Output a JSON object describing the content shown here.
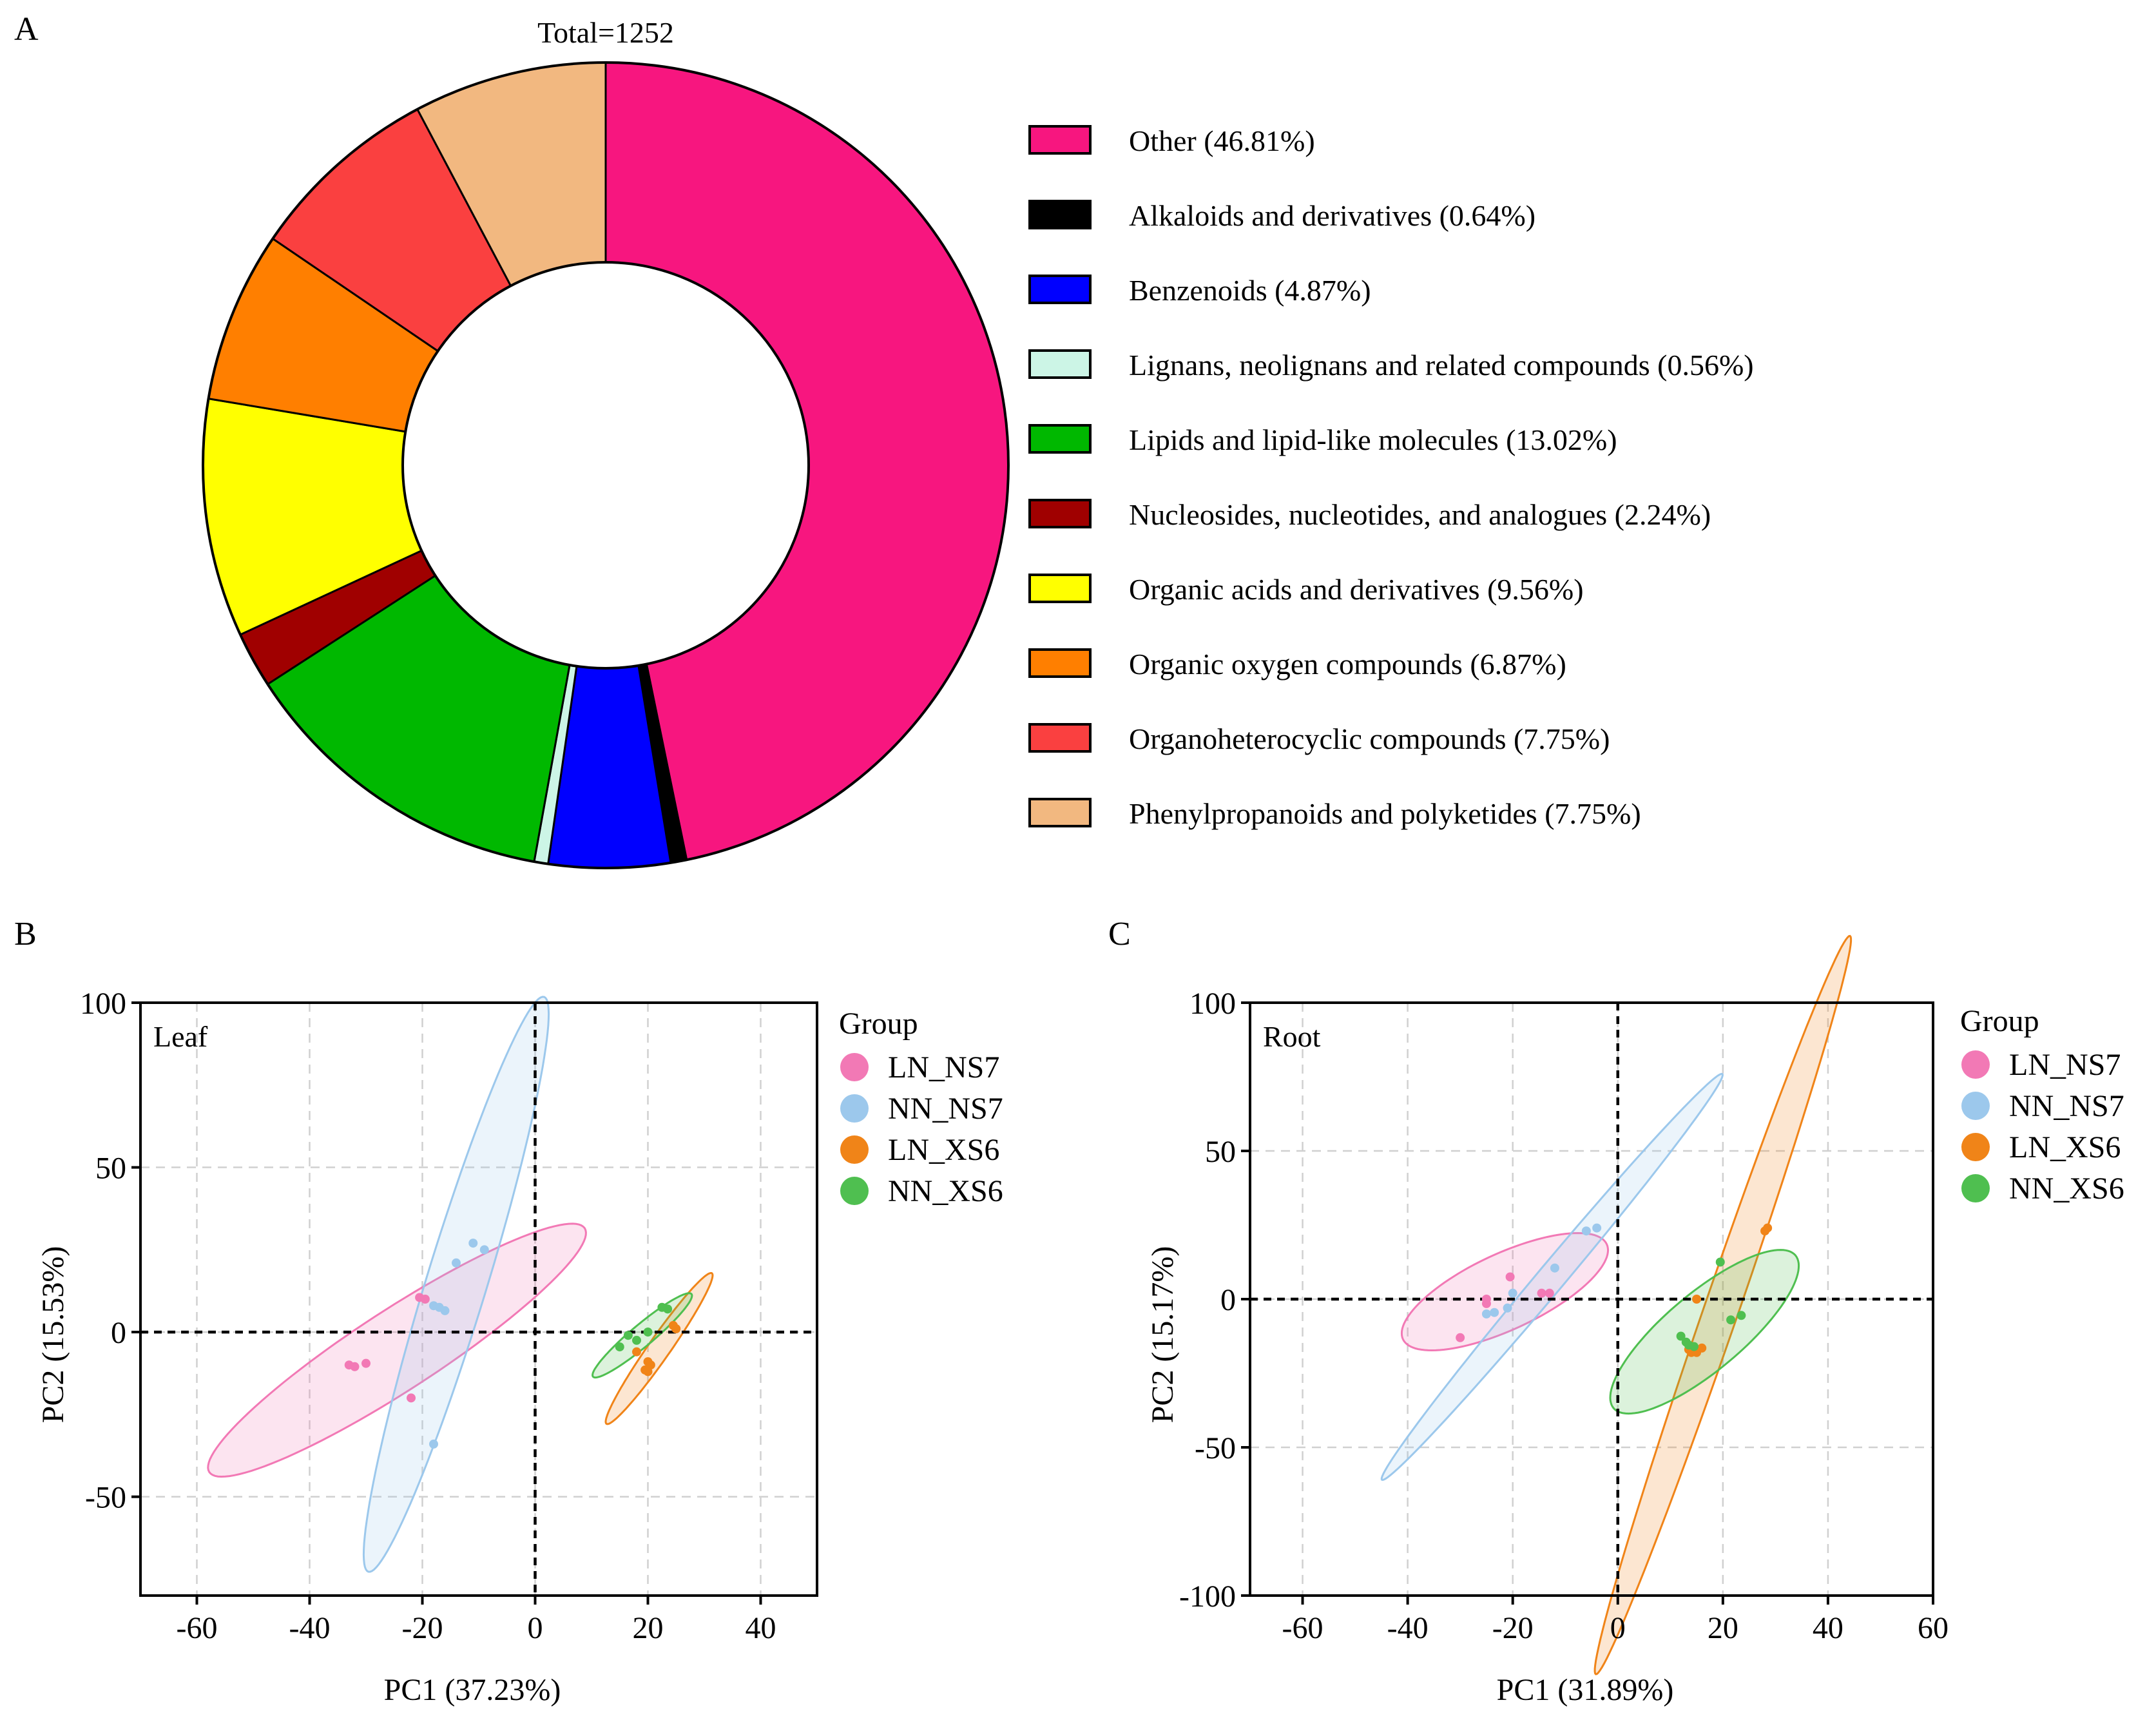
{
  "panels": {
    "a": {
      "label": "A",
      "total_label": "Total=1252"
    },
    "b": {
      "label": "B",
      "tissue": "Leaf"
    },
    "c": {
      "label": "C",
      "tissue": "Root"
    }
  },
  "legend_title": "Group",
  "colors": {
    "LN_NS7": "#f279b5",
    "NN_NS7": "#9cc8ec",
    "LN_XS6": "#f08418",
    "NN_XS6": "#4fbf50"
  },
  "chart_data": [
    {
      "type": "pie",
      "style": "donut",
      "title": "Total=1252",
      "total": 1252,
      "slices": [
        {
          "name": "Other",
          "value": 46.81,
          "label": "Other (46.81%)",
          "color": "#f7167f"
        },
        {
          "name": "Alkaloids and derivatives",
          "value": 0.64,
          "label": "Alkaloids and derivatives (0.64%)",
          "color": "#000000"
        },
        {
          "name": "Benzenoids",
          "value": 4.87,
          "label": "Benzenoids (4.87%)",
          "color": "#0000ff"
        },
        {
          "name": "Lignans, neolignans and related compounds",
          "value": 0.56,
          "label": "Lignans, neolignans and related compounds (0.56%)",
          "color": "#ccf5e6"
        },
        {
          "name": "Lipids and lipid-like molecules",
          "value": 13.02,
          "label": "Lipids and lipid-like molecules (13.02%)",
          "color": "#00b800"
        },
        {
          "name": "Nucleosides, nucleotides, and analogues",
          "value": 2.24,
          "label": "Nucleosides, nucleotides, and analogues (2.24%)",
          "color": "#a00000"
        },
        {
          "name": "Organic acids and derivatives",
          "value": 9.56,
          "label": "Organic acids and derivatives (9.56%)",
          "color": "#ffff00"
        },
        {
          "name": "Organic oxygen compounds",
          "value": 6.87,
          "label": "Organic oxygen compounds (6.87%)",
          "color": "#ff7f00"
        },
        {
          "name": "Organoheterocyclic compounds",
          "value": 7.75,
          "label": "Organoheterocyclic compounds (7.75%)",
          "color": "#fa4040"
        },
        {
          "name": "Phenylpropanoids and polyketides",
          "value": 7.75,
          "label": "Phenylpropanoids and polyketides (7.75%)",
          "color": "#f2b880"
        }
      ]
    },
    {
      "type": "scatter",
      "title": "Leaf",
      "xlabel": "PC1  (37.23%)",
      "ylabel": "PC2  (15.53%)",
      "xlim": [
        -70,
        50
      ],
      "ylim": [
        -80,
        100
      ],
      "xticks": [
        -60,
        -40,
        -20,
        0,
        20,
        40
      ],
      "yticks": [
        -50,
        0,
        50,
        100
      ],
      "grid": true,
      "legend": "right",
      "series": [
        {
          "name": "LN_NS7",
          "points": [
            [
              -33,
              -10
            ],
            [
              -32,
              -10.5
            ],
            [
              -30,
              -9.5
            ],
            [
              -22,
              -20
            ],
            [
              -20.5,
              10.5
            ],
            [
              -19.5,
              10
            ]
          ],
          "ellipse": {
            "center": [
              -24.5,
              -5.5
            ],
            "semi_major": 39.7,
            "semi_minor": 12.2,
            "angle": 33
          }
        },
        {
          "name": "NN_NS7",
          "points": [
            [
              -18,
              8
            ],
            [
              -17,
              7.5
            ],
            [
              -16,
              6.5
            ],
            [
              -14,
              21
            ],
            [
              -11,
              27
            ],
            [
              -9,
              25
            ],
            [
              -18,
              -34
            ]
          ],
          "ellipse": {
            "center": [
              -14,
              14.5
            ],
            "semi_major": 53.3,
            "semi_minor": 9.2,
            "angle": 73
          }
        },
        {
          "name": "LN_XS6",
          "points": [
            [
              20,
              -9
            ],
            [
              20.5,
              -10
            ],
            [
              19.5,
              -11.5
            ],
            [
              20,
              -12
            ],
            [
              18,
              -6
            ],
            [
              24.5,
              2
            ],
            [
              25,
              1
            ]
          ],
          "ellipse": {
            "center": [
              22,
              -5
            ],
            "semi_major": 16.3,
            "semi_minor": 3.3,
            "angle": 55
          }
        },
        {
          "name": "NN_XS6",
          "points": [
            [
              15,
              -4.5
            ],
            [
              16.5,
              -1
            ],
            [
              18,
              -2.5
            ],
            [
              20,
              0
            ],
            [
              22.5,
              7.5
            ],
            [
              23.5,
              7
            ]
          ],
          "ellipse": {
            "center": [
              19,
              -1
            ],
            "semi_major": 11.4,
            "semi_minor": 3.3,
            "angle": 40
          }
        }
      ]
    },
    {
      "type": "scatter",
      "title": "Root",
      "xlabel": "PC1  (31.89%)",
      "ylabel": "PC2  (15.17%)",
      "xlim": [
        -70,
        60
      ],
      "ylim": [
        -100,
        100
      ],
      "xticks": [
        -60,
        -40,
        -20,
        0,
        20,
        40,
        60
      ],
      "yticks": [
        -100,
        -50,
        0,
        50,
        100
      ],
      "grid": true,
      "legend": "right",
      "series": [
        {
          "name": "LN_NS7",
          "points": [
            [
              -30,
              -13
            ],
            [
              -25,
              -1.5
            ],
            [
              -25,
              0
            ],
            [
              -20.5,
              7.5
            ],
            [
              -14.5,
              2
            ],
            [
              -13,
              2
            ]
          ],
          "ellipse": {
            "center": [
              -21.5,
              2.5
            ],
            "semi_major": 21.4,
            "semi_minor": 12.8,
            "angle": 25
          }
        },
        {
          "name": "NN_NS7",
          "points": [
            [
              -25,
              -5
            ],
            [
              -23.5,
              -4.5
            ],
            [
              -20,
              2
            ],
            [
              -12,
              10.5
            ],
            [
              -6,
              23
            ],
            [
              -4,
              24
            ],
            [
              -21,
              -3
            ]
          ],
          "ellipse": {
            "center": [
              -12.5,
              7.5
            ],
            "semi_major": 50.4,
            "semi_minor": 4.6,
            "angle": 50
          }
        },
        {
          "name": "LN_XS6",
          "points": [
            [
              15,
              0
            ],
            [
              13.5,
              -17
            ],
            [
              14,
              -18
            ],
            [
              15,
              -18
            ],
            [
              16,
              -16.5
            ],
            [
              28,
              23
            ],
            [
              28.5,
              24
            ]
          ],
          "ellipse": {
            "center": [
              20,
              -2
            ],
            "semi_major": 74.3,
            "semi_minor": 5.8,
            "angle": 71
          }
        },
        {
          "name": "NN_XS6",
          "points": [
            [
              12,
              -12.5
            ],
            [
              13,
              -14.5
            ],
            [
              13.5,
              -15.5
            ],
            [
              14.5,
              -16
            ],
            [
              19.5,
              12.5
            ],
            [
              21.5,
              -7
            ],
            [
              23.5,
              -5.5
            ]
          ],
          "ellipse": {
            "center": [
              16.5,
              -11
            ],
            "semi_major": 22.6,
            "semi_minor": 13.0,
            "angle": 40
          }
        }
      ]
    }
  ]
}
